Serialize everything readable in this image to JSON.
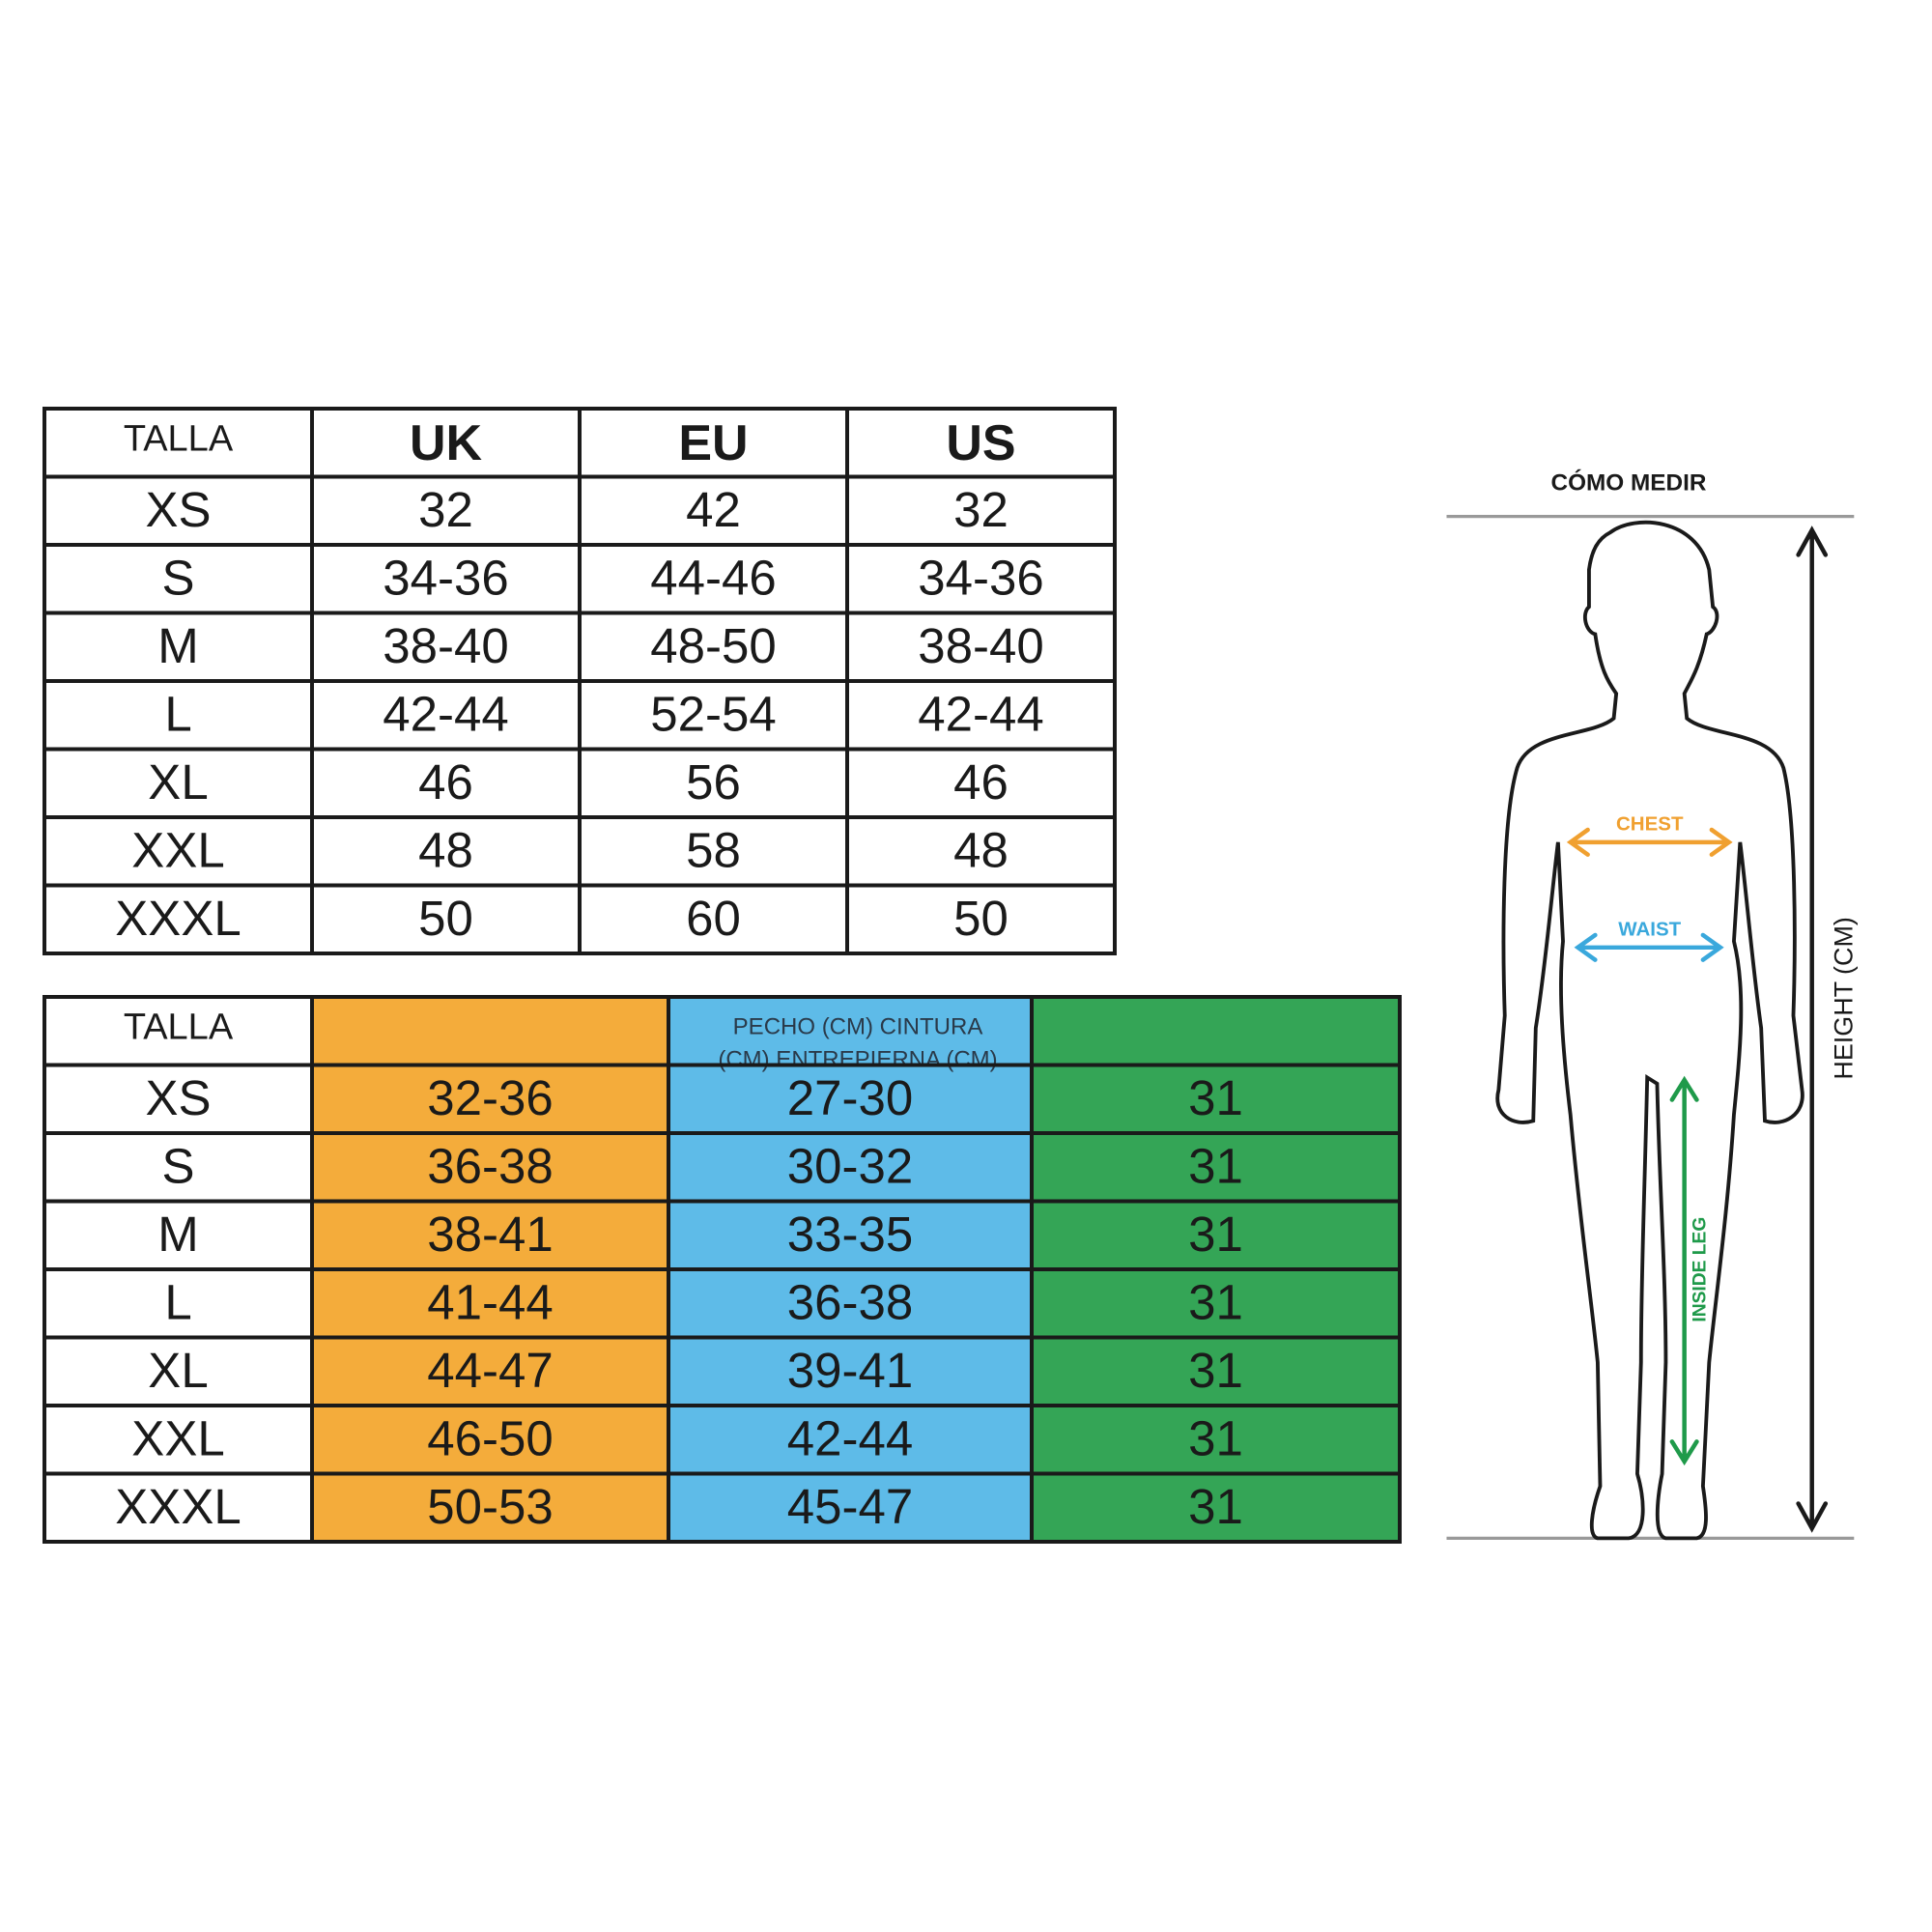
{
  "table1": {
    "header": [
      "TALLA",
      "UK",
      "EU",
      "US"
    ],
    "rows": [
      [
        "XS",
        "32",
        "42",
        "32"
      ],
      [
        "S",
        "34-36",
        "44-46",
        "34-36"
      ],
      [
        "M",
        "38-40",
        "48-50",
        "38-40"
      ],
      [
        "L",
        "42-44",
        "52-54",
        "42-44"
      ],
      [
        "XL",
        "46",
        "56",
        "46"
      ],
      [
        "XXL",
        "48",
        "58",
        "48"
      ],
      [
        "XXXL",
        "50",
        "60",
        "50"
      ]
    ]
  },
  "table2": {
    "header": "TALLA",
    "header_note": [
      "PECHO (CM) CINTURA",
      "(CM) ENTREPIERNA (CM)"
    ],
    "rows": [
      [
        "XS",
        "32-36",
        "27-30",
        "31"
      ],
      [
        "S",
        "36-38",
        "30-32",
        "31"
      ],
      [
        "M",
        "38-41",
        "33-35",
        "31"
      ],
      [
        "L",
        "41-44",
        "36-38",
        "31"
      ],
      [
        "XL",
        "44-47",
        "39-41",
        "31"
      ],
      [
        "XXL",
        "46-50",
        "42-44",
        "31"
      ],
      [
        "XXXL",
        "50-53",
        "45-47",
        "31"
      ]
    ]
  },
  "figure": {
    "title": "CÓMO MEDIR",
    "chest": "CHEST",
    "waist": "WAIST",
    "inside_leg": "INSIDE LEG",
    "height": "HEIGHT (CM)"
  }
}
